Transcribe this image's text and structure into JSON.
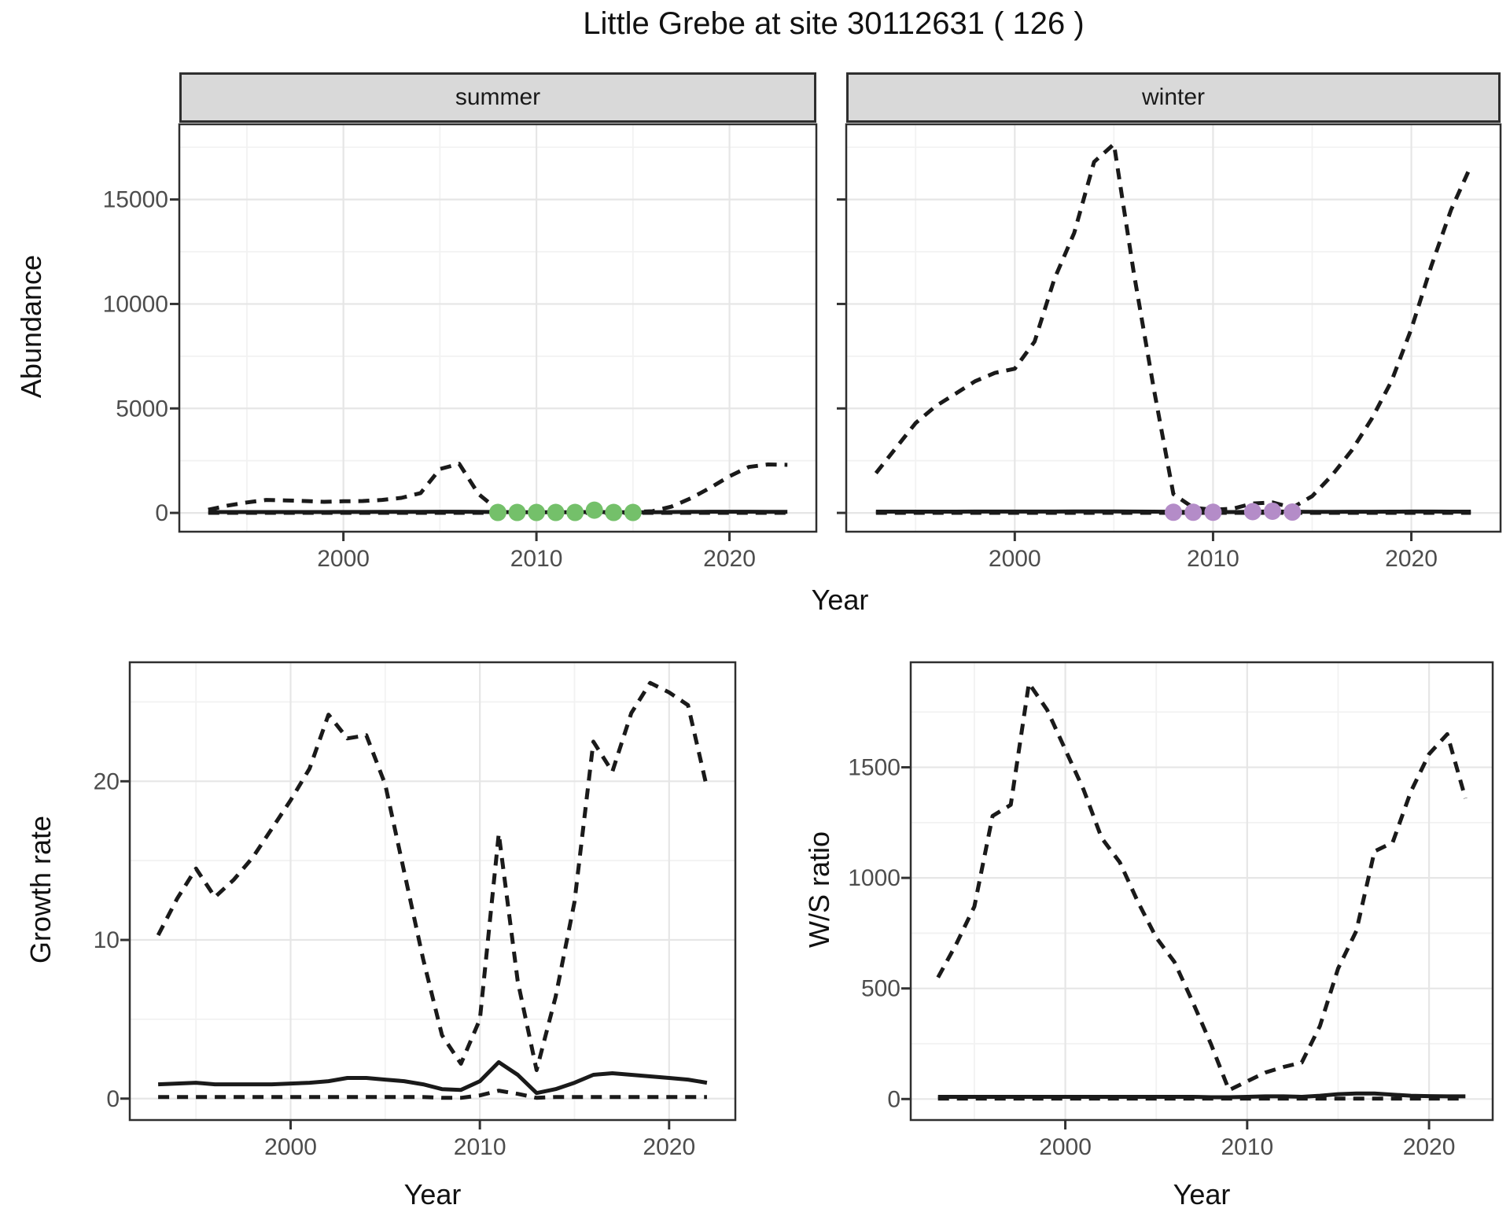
{
  "title": "Little Grebe at site 30112631 ( 126 )",
  "facets": {
    "summer_label": "summer",
    "winter_label": "winter"
  },
  "axis_titles": {
    "abundance": "Abundance",
    "growth_rate": "Growth rate",
    "ws_ratio": "W/S ratio",
    "year": "Year"
  },
  "colors": {
    "line": "#1a1a1a",
    "summer_points": "#74c06a",
    "winter_points": "#b48cc8",
    "strip_bg": "#d9d9d9",
    "grid_major": "#e6e6e6",
    "grid_minor": "#f2f2f2",
    "tick_label": "#4d4d4d",
    "panel_border": "#2f2f2f"
  },
  "chart_data": [
    {
      "id": "abundance-summer",
      "type": "line",
      "facet": "summer",
      "ylabel": "Abundance",
      "xlabel": "Year",
      "xlim": [
        1991.5,
        2024.5
      ],
      "ylim": [
        -900,
        18600
      ],
      "xticks": [
        2000,
        2010,
        2020
      ],
      "xminor": [
        1995,
        2005,
        2015
      ],
      "yticks": [
        0,
        5000,
        10000,
        15000
      ],
      "yminor": [
        2500,
        7500,
        12500,
        17500
      ],
      "x": [
        1993,
        1994,
        1995,
        1996,
        1997,
        1998,
        1999,
        2000,
        2001,
        2002,
        2003,
        2004,
        2005,
        2006,
        2007,
        2008,
        2009,
        2010,
        2011,
        2012,
        2013,
        2014,
        2015,
        2016,
        2017,
        2018,
        2019,
        2020,
        2021,
        2022,
        2023
      ],
      "series": [
        {
          "name": "upper_ci",
          "style": "dashed",
          "values": [
            150,
            350,
            500,
            620,
            600,
            570,
            530,
            555,
            570,
            620,
            720,
            950,
            2100,
            2350,
            900,
            150,
            60,
            50,
            50,
            60,
            120,
            60,
            50,
            80,
            300,
            700,
            1200,
            1750,
            2200,
            2320,
            2300
          ]
        },
        {
          "name": "mean",
          "style": "solid",
          "values": [
            40,
            40,
            40,
            40,
            40,
            42,
            42,
            45,
            45,
            48,
            50,
            52,
            55,
            55,
            50,
            40,
            30,
            28,
            28,
            30,
            45,
            35,
            30,
            32,
            40,
            50,
            55,
            58,
            55,
            52,
            50
          ]
        },
        {
          "name": "lower_ci",
          "style": "dashed",
          "values": [
            5,
            5,
            5,
            5,
            5,
            5,
            5,
            5,
            5,
            5,
            5,
            5,
            5,
            5,
            5,
            5,
            5,
            5,
            5,
            5,
            5,
            5,
            5,
            5,
            5,
            5,
            5,
            5,
            5,
            5,
            5
          ]
        }
      ],
      "points": {
        "name": "observed-counts-summer",
        "color": "#74c06a",
        "x": [
          2008,
          2009,
          2010,
          2011,
          2012,
          2013,
          2014,
          2015
        ],
        "y": [
          20,
          20,
          20,
          20,
          20,
          130,
          20,
          20
        ]
      }
    },
    {
      "id": "abundance-winter",
      "type": "line",
      "facet": "winter",
      "ylabel": "Abundance",
      "xlabel": "Year",
      "xlim": [
        1991.5,
        2024.5
      ],
      "ylim": [
        -900,
        18600
      ],
      "xticks": [
        2000,
        2010,
        2020
      ],
      "xminor": [
        1995,
        2005,
        2015
      ],
      "yticks": [
        0,
        5000,
        10000,
        15000
      ],
      "yminor": [
        2500,
        7500,
        12500,
        17500
      ],
      "x": [
        1993,
        1994,
        1995,
        1996,
        1997,
        1998,
        1999,
        2000,
        2001,
        2002,
        2003,
        2004,
        2005,
        2006,
        2007,
        2008,
        2009,
        2010,
        2011,
        2012,
        2013,
        2014,
        2015,
        2016,
        2017,
        2018,
        2019,
        2020,
        2021,
        2022,
        2023
      ],
      "series": [
        {
          "name": "upper_ci",
          "style": "dashed",
          "values": [
            1900,
            3100,
            4300,
            5100,
            5700,
            6300,
            6700,
            6900,
            8200,
            11200,
            13400,
            16800,
            17650,
            11500,
            6000,
            900,
            250,
            150,
            200,
            450,
            500,
            250,
            800,
            1800,
            3000,
            4500,
            6300,
            8800,
            11800,
            14500,
            16600
          ]
        },
        {
          "name": "mean",
          "style": "solid",
          "values": [
            60,
            60,
            60,
            60,
            60,
            62,
            62,
            62,
            65,
            65,
            68,
            70,
            70,
            65,
            60,
            50,
            40,
            38,
            40,
            55,
            70,
            55,
            50,
            52,
            55,
            58,
            60,
            62,
            62,
            60,
            60
          ]
        },
        {
          "name": "lower_ci",
          "style": "dashed",
          "values": [
            5,
            5,
            5,
            5,
            5,
            5,
            5,
            5,
            5,
            5,
            5,
            5,
            5,
            5,
            5,
            5,
            5,
            5,
            5,
            5,
            5,
            5,
            5,
            5,
            5,
            5,
            5,
            5,
            5,
            5,
            5
          ]
        }
      ],
      "points": {
        "name": "observed-counts-winter",
        "color": "#b48cc8",
        "x": [
          2008,
          2009,
          2010,
          2012,
          2013,
          2014
        ],
        "y": [
          30,
          30,
          30,
          60,
          80,
          40
        ]
      }
    },
    {
      "id": "growth-rate",
      "type": "line",
      "facet": null,
      "ylabel": "Growth rate",
      "xlabel": "Year",
      "xlim": [
        1991.5,
        2023.5
      ],
      "ylim": [
        -1.35,
        27.5
      ],
      "xticks": [
        2000,
        2010,
        2020
      ],
      "xminor": [
        1995,
        2005,
        2015
      ],
      "yticks": [
        0,
        10,
        20
      ],
      "yminor": [
        5,
        15,
        25
      ],
      "x": [
        1993,
        1994,
        1995,
        1996,
        1997,
        1998,
        1999,
        2000,
        2001,
        2002,
        2003,
        2004,
        2005,
        2006,
        2007,
        2008,
        2009,
        2010,
        2011,
        2012,
        2013,
        2014,
        2015,
        2016,
        2017,
        2018,
        2019,
        2020,
        2021,
        2022
      ],
      "series": [
        {
          "name": "upper_ci",
          "style": "dashed",
          "values": [
            10.3,
            12.6,
            14.5,
            12.7,
            13.8,
            15.2,
            17.0,
            18.8,
            20.8,
            24.2,
            22.7,
            22.9,
            19.8,
            14.3,
            8.8,
            4.0,
            2.2,
            5.0,
            16.7,
            7.4,
            1.8,
            6.4,
            12.4,
            22.5,
            20.6,
            24.3,
            26.2,
            25.6,
            24.8,
            19.6
          ]
        },
        {
          "name": "mean",
          "style": "solid",
          "values": [
            0.9,
            0.95,
            1.0,
            0.9,
            0.9,
            0.9,
            0.9,
            0.95,
            1.0,
            1.1,
            1.3,
            1.3,
            1.2,
            1.1,
            0.9,
            0.6,
            0.55,
            1.1,
            2.3,
            1.5,
            0.35,
            0.6,
            1.0,
            1.5,
            1.6,
            1.5,
            1.4,
            1.3,
            1.2,
            1.0
          ]
        },
        {
          "name": "lower_ci",
          "style": "dashed",
          "values": [
            0.1,
            0.1,
            0.1,
            0.1,
            0.1,
            0.1,
            0.1,
            0.1,
            0.1,
            0.1,
            0.1,
            0.1,
            0.1,
            0.1,
            0.1,
            0.05,
            0.05,
            0.2,
            0.5,
            0.3,
            0.05,
            0.1,
            0.1,
            0.1,
            0.1,
            0.1,
            0.1,
            0.1,
            0.1,
            0.1
          ]
        }
      ],
      "points": null
    },
    {
      "id": "ws-ratio",
      "type": "line",
      "facet": null,
      "ylabel": "W/S ratio",
      "xlabel": "Year",
      "xlim": [
        1991.5,
        2023.5
      ],
      "ylim": [
        -95,
        1975
      ],
      "xticks": [
        2000,
        2010,
        2020
      ],
      "xminor": [
        1995,
        2005,
        2015
      ],
      "yticks": [
        0,
        500,
        1000,
        1500
      ],
      "yminor": [
        250,
        750,
        1250,
        1750
      ],
      "x": [
        1993,
        1994,
        1995,
        1996,
        1997,
        1998,
        1999,
        2000,
        2001,
        2002,
        2003,
        2004,
        2005,
        2006,
        2007,
        2008,
        2009,
        2010,
        2011,
        2012,
        2013,
        2014,
        2015,
        2016,
        2017,
        2018,
        2019,
        2020,
        2021,
        2022
      ],
      "series": [
        {
          "name": "upper_ci",
          "style": "dashed",
          "values": [
            550,
            700,
            870,
            1280,
            1330,
            1880,
            1760,
            1580,
            1400,
            1180,
            1070,
            890,
            730,
            620,
            440,
            250,
            40,
            80,
            120,
            145,
            165,
            330,
            590,
            760,
            1120,
            1160,
            1390,
            1560,
            1650,
            1360
          ]
        },
        {
          "name": "mean",
          "style": "solid",
          "values": [
            10,
            10,
            10,
            10,
            10,
            10,
            10,
            10,
            10,
            10,
            10,
            10,
            10,
            10,
            10,
            8,
            8,
            10,
            12,
            12,
            10,
            15,
            22,
            25,
            25,
            20,
            15,
            13,
            12,
            12
          ]
        },
        {
          "name": "lower_ci",
          "style": "dashed",
          "values": [
            2,
            2,
            2,
            2,
            2,
            2,
            2,
            2,
            2,
            2,
            2,
            2,
            2,
            2,
            2,
            2,
            2,
            2,
            2,
            2,
            2,
            2,
            2,
            2,
            2,
            2,
            2,
            2,
            2,
            2
          ]
        }
      ],
      "points": null
    }
  ]
}
